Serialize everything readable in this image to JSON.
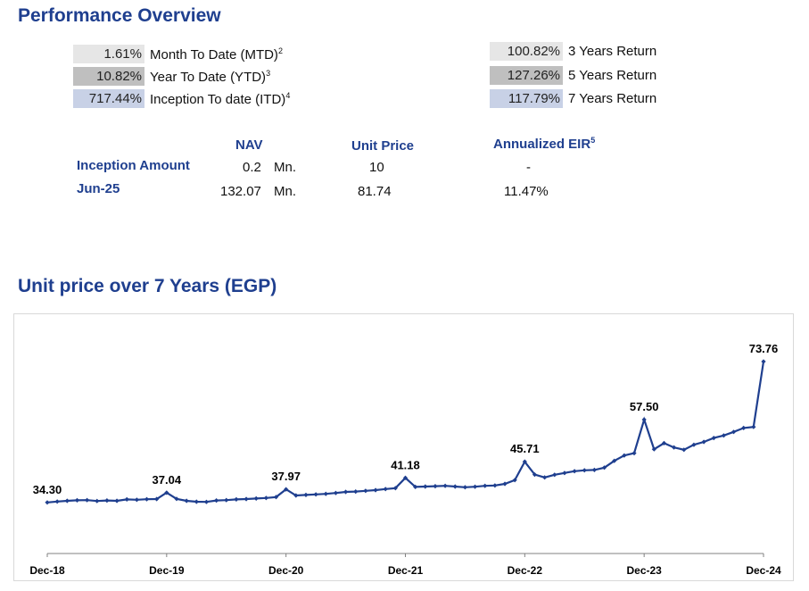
{
  "performance": {
    "title": "Performance Overview",
    "left_returns": [
      {
        "value": "1.61%",
        "label": "Month To Date (MTD)",
        "sup": "2",
        "bg": "#e6e6e6"
      },
      {
        "value": "10.82%",
        "label": "Year To Date (YTD)",
        "sup": "3",
        "bg": "#bfbfbf"
      },
      {
        "value": "717.44%",
        "label": "Inception To date (ITD)",
        "sup": "4",
        "bg": "#c8d1e6"
      }
    ],
    "right_returns": [
      {
        "value": "100.82%",
        "label": "3 Years Return",
        "bg": "#e6e6e6"
      },
      {
        "value": "127.26%",
        "label": "5 Years Return",
        "bg": "#bfbfbf"
      },
      {
        "value": "117.79%",
        "label": "7 Years Return",
        "bg": "#c8d1e6"
      }
    ]
  },
  "table": {
    "headers": {
      "nav": "NAV",
      "unit_price": "Unit Price",
      "eir": "Annualized EIR",
      "eir_sup": "5"
    },
    "rows": [
      {
        "label": "Inception Amount",
        "nav": "0.2",
        "unit": "Mn.",
        "unit_price": "10",
        "eir": "-"
      },
      {
        "label": "Jun-25",
        "nav": "132.07",
        "unit": "Mn.",
        "unit_price": "81.74",
        "eir": "11.47%"
      }
    ]
  },
  "chart_title": "Unit price over 7 Years (EGP)",
  "chart_data": {
    "type": "line",
    "title": "Unit price over 7 Years (EGP)",
    "x_ticks": [
      "Dec-18",
      "Dec-19",
      "Dec-20",
      "Dec-21",
      "Dec-22",
      "Dec-23",
      "Dec-24"
    ],
    "x_start": "Dec-18",
    "x_end": "Dec-24",
    "ylim": [
      20,
      80
    ],
    "grid": false,
    "legend": "none",
    "color": "#1f3f8f",
    "series": [
      {
        "values": [
          34.3,
          34.55,
          34.75,
          34.9,
          34.95,
          34.7,
          34.85,
          34.75,
          35.15,
          35.05,
          35.2,
          35.25,
          37.04,
          35.3,
          34.75,
          34.5,
          34.45,
          34.85,
          34.95,
          35.15,
          35.25,
          35.4,
          35.55,
          35.8,
          37.97,
          36.25,
          36.4,
          36.55,
          36.7,
          36.95,
          37.25,
          37.35,
          37.55,
          37.75,
          38.05,
          38.3,
          41.18,
          38.65,
          38.75,
          38.85,
          38.95,
          38.75,
          38.55,
          38.7,
          38.95,
          39.05,
          39.5,
          40.55,
          45.71,
          42.1,
          41.3,
          42.05,
          42.55,
          43.05,
          43.3,
          43.4,
          44.05,
          45.95,
          47.45,
          48.1,
          57.5,
          49.2,
          50.9,
          49.7,
          49.05,
          50.45,
          51.25,
          52.35,
          53.05,
          54.05,
          55.15,
          55.45,
          73.76
        ]
      }
    ],
    "data_labels": [
      {
        "index": 0,
        "text": "34.30"
      },
      {
        "index": 12,
        "text": "37.04"
      },
      {
        "index": 24,
        "text": "37.97"
      },
      {
        "index": 36,
        "text": "41.18"
      },
      {
        "index": 48,
        "text": "45.71"
      },
      {
        "index": 60,
        "text": "57.50"
      },
      {
        "index": 72,
        "text": "73.76"
      }
    ]
  }
}
